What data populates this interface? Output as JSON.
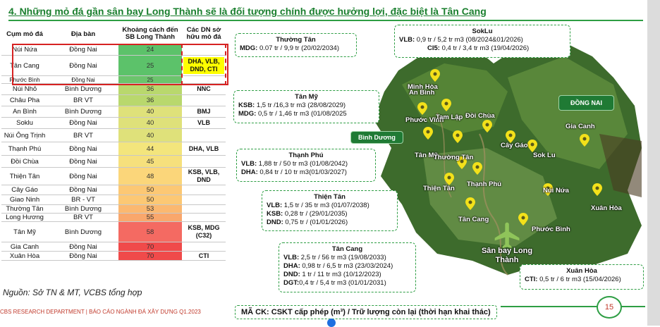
{
  "title": "4. Những mỏ đá gần sân bay Long Thành sẽ là đối tượng chính được hưởng lợi, đặc biệt là Tân Cang",
  "table": {
    "headers": [
      "Cụm mỏ đá",
      "Địa bàn",
      "Khoảng cách đến SB Long Thành",
      "Các DN sở hữu mỏ đá"
    ],
    "rows": [
      {
        "name": "Núi Nứa",
        "area": "Đồng Nai",
        "distance": "24",
        "owners": "",
        "color": "#5cc26a",
        "owner_hl": false
      },
      {
        "name": "Tân Cang",
        "area": "Đồng Nai",
        "distance": "25",
        "owners": "DHA, VLB, DND, CTI",
        "color": "#5cc26a",
        "owner_hl": true
      },
      {
        "name": "Phước Bình",
        "area": "Đồng Nai",
        "distance": "25",
        "owners": "",
        "color": "#6cc46c",
        "owner_hl": false
      },
      {
        "name": "Núi Nhỏ",
        "area": "Bình Dương",
        "distance": "36",
        "owners": "NNC",
        "color": "#b9d86d",
        "owner_hl": false
      },
      {
        "name": "Châu Pha",
        "area": "BR VT",
        "distance": "36",
        "owners": "",
        "color": "#b9d86d",
        "owner_hl": false
      },
      {
        "name": "An Bình",
        "area": "Bình Dương",
        "distance": "40",
        "owners": "BMJ",
        "color": "#dfe17a",
        "owner_hl": false
      },
      {
        "name": "Soklu",
        "area": "Đồng Nai",
        "distance": "40",
        "owners": "VLB",
        "color": "#dfe17a",
        "owner_hl": false
      },
      {
        "name": "Núi Ông Trịnh",
        "area": "BR VT",
        "distance": "40",
        "owners": "",
        "color": "#dfe17a",
        "owner_hl": false
      },
      {
        "name": "Thạnh Phú",
        "area": "Đồng Nai",
        "distance": "44",
        "owners": "DHA, VLB",
        "color": "#f3e57c",
        "owner_hl": false
      },
      {
        "name": "Đồi Chùa",
        "area": "Đồng Nai",
        "distance": "45",
        "owners": "",
        "color": "#f6e07c",
        "owner_hl": false
      },
      {
        "name": "Thiện Tân",
        "area": "Đồng Nai",
        "distance": "48",
        "owners": "KSB, VLB, DND",
        "color": "#fbd67a",
        "owner_hl": false
      },
      {
        "name": "Cây Gáo",
        "area": "Đồng Nai",
        "distance": "50",
        "owners": "",
        "color": "#fcc874",
        "owner_hl": false
      },
      {
        "name": "Giao Ninh",
        "area": "BR - VT",
        "distance": "50",
        "owners": "",
        "color": "#fcc874",
        "owner_hl": false
      },
      {
        "name": "Thường Tân",
        "area": "Bình Dương",
        "distance": "53",
        "owners": "",
        "color": "#fbb870",
        "owner_hl": false
      },
      {
        "name": "Long Hương",
        "area": "BR VT",
        "distance": "55",
        "owners": "",
        "color": "#f9a76c",
        "owner_hl": false
      },
      {
        "name": "Tân Mỹ",
        "area": "Bình Dương",
        "distance": "58",
        "owners": "KSB, MDG (C32)",
        "color": "#f46a62",
        "owner_hl": false
      },
      {
        "name": "Gia Canh",
        "area": "Đồng Nai",
        "distance": "70",
        "owners": "",
        "color": "#f04a4a",
        "owner_hl": false
      },
      {
        "name": "Xuân Hòa",
        "area": "Đồng Nai",
        "distance": "70",
        "owners": "CTI",
        "color": "#f04a4a",
        "owner_hl": false
      }
    ]
  },
  "source": "Nguồn: Sở TN & MT, VCBS tổng hợp",
  "footer": "CBS RESEARCH DEPARTMENT | BÁO CÁO NGÀNH ĐÁ XÂY DỰNG Q1.2023",
  "legend": "MÃ CK: CSKT cấp phép (m³) / Trữ lượng còn lại (thời hạn khai thác)",
  "page_number": "15",
  "map": {
    "regions": [
      "Bình Dương",
      "ĐỒNG NAI"
    ],
    "places": [
      "Minh Hòa",
      "An Bình",
      "Phước Vĩnh",
      "Tam Lập",
      "Đồi Chùa",
      "Tân Mỹ",
      "Thường Tân",
      "Cây Gáo",
      "Sok Lu",
      "Gia Canh",
      "Thạnh Phú",
      "Thiện Tân",
      "Núi Nứa",
      "Xuân Hòa",
      "Tân Cang",
      "Phước Bình"
    ],
    "airport": "Sân bay Long Thành"
  },
  "callouts": {
    "thuong_tan": {
      "title": "Thường Tân",
      "lines": [
        {
          "k": "MDG:",
          "v": " 0.07 tr / 9,9 tr (20/02/2034)"
        }
      ]
    },
    "soklu": {
      "title": "SokLu",
      "lines": [
        {
          "k": "VLB:",
          "v": " 0,9 tr / 5,2 tr m3 (08/2024&01/2026)"
        },
        {
          "k": "CI5:",
          "v": " 0,4 tr / 3,4 tr m3 (19/04/2026)"
        }
      ]
    },
    "tan_my": {
      "title": "Tân Mỹ",
      "lines": [
        {
          "k": "KSB:",
          "v": " 1,5 tr /16,3 tr m3 (28/08/2029)"
        },
        {
          "k": "MDG:",
          "v": " 0,5 tr / 1,46 tr m3 (01/08/2025"
        }
      ]
    },
    "thanh_phu": {
      "title": "Thạnh Phú",
      "lines": [
        {
          "k": "VLB:",
          "v": " 1,88 tr / 50 tr m3 (01/08/2042)"
        },
        {
          "k": "DHA:",
          "v": " 0,84 tr / 10 tr m3(01/03/2027)"
        }
      ]
    },
    "thien_tan": {
      "title": "Thiện Tân",
      "lines": [
        {
          "k": "VLB:",
          "v": " 1,5 tr / 35 tr m3 (01/07/2038)"
        },
        {
          "k": "KSB:",
          "v": " 0,28 tr / (29/01/2035)"
        },
        {
          "k": "DND:",
          "v": " 0,75 tr / (01/01/2026)"
        }
      ]
    },
    "tan_cang": {
      "title": "Tân Cang",
      "lines": [
        {
          "k": "VLB:",
          "v": " 2,5 tr / 56 tr m3 (19/08/2033)"
        },
        {
          "k": "DHA:",
          "v": " 0,98 tr / 6,5 tr m3 (23/03/2024)"
        },
        {
          "k": "DND:",
          "v": " 1 tr / 11 tr m3 (10/12/2023)"
        },
        {
          "k": "DGT:",
          "v": "0,4 tr / 5,4 tr m3 (01/01/2031)"
        }
      ]
    },
    "xuan_hoa": {
      "title": "Xuân Hòa",
      "lines": [
        {
          "k": "CTI:",
          "v": " 0,5 tr / 6 tr m3 (15/04/2026)"
        }
      ]
    }
  }
}
